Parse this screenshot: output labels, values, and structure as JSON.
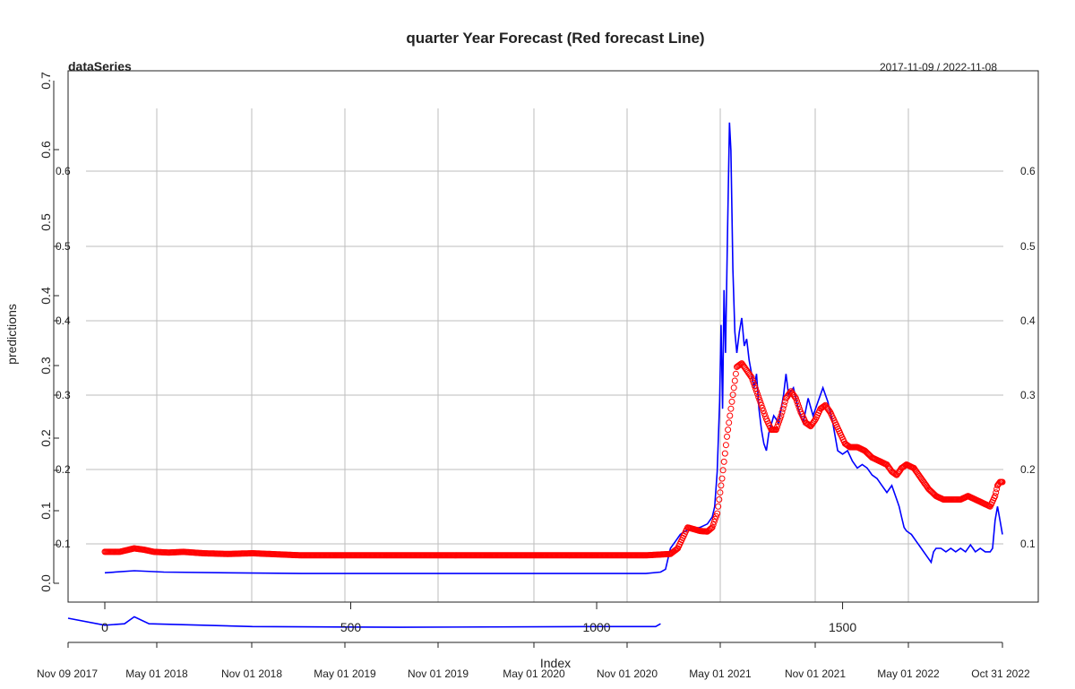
{
  "chart_data": {
    "type": "line",
    "title": "quarter Year Forecast (Red forecast Line)",
    "panel_label": "dataSeries",
    "date_range": "2017-11-09 / 2022-11-08",
    "xlabel": "Index",
    "ylabel": "predictions",
    "index_ticks": [
      0,
      500,
      1000,
      1500
    ],
    "index_range": [
      0,
      1825
    ],
    "left_y_ticks": [
      "0.0",
      "0.1",
      "0.1",
      "0.2",
      "0.2",
      "0.3",
      "0.3",
      "0.4",
      "0.5",
      "0.6",
      "0.7"
    ],
    "inner_left_y_ticks": [
      "0.1",
      "0.2",
      "0.3",
      "0.4",
      "0.5",
      "0.6"
    ],
    "right_y_ticks": [
      "0.1",
      "0.2",
      "0.3",
      "0.4",
      "0.5",
      "0.6"
    ],
    "ylim": [
      0.0,
      0.72
    ],
    "date_ticks": [
      "Nov 09 2017",
      "May 01 2018",
      "Nov 01 2018",
      "May 01 2019",
      "Nov 01 2019",
      "May 01 2020",
      "Nov 01 2020",
      "May 01 2021",
      "Nov 01 2021",
      "May 01 2022",
      "Oct 31 2022"
    ],
    "series": [
      {
        "name": "",
        "style": "line",
        "color": "#0000ff",
        "points": [
          [
            0,
            0.015
          ],
          [
            60,
            0.018
          ],
          [
            120,
            0.016
          ],
          [
            250,
            0.015
          ],
          [
            400,
            0.014
          ],
          [
            600,
            0.014
          ],
          [
            800,
            0.014
          ],
          [
            950,
            0.014
          ],
          [
            1100,
            0.014
          ],
          [
            1130,
            0.016
          ],
          [
            1140,
            0.02
          ],
          [
            1150,
            0.05
          ],
          [
            1160,
            0.06
          ],
          [
            1170,
            0.07
          ],
          [
            1180,
            0.075
          ],
          [
            1195,
            0.078
          ],
          [
            1210,
            0.08
          ],
          [
            1225,
            0.085
          ],
          [
            1235,
            0.095
          ],
          [
            1240,
            0.11
          ],
          [
            1245,
            0.16
          ],
          [
            1250,
            0.26
          ],
          [
            1253,
            0.37
          ],
          [
            1256,
            0.25
          ],
          [
            1259,
            0.42
          ],
          [
            1262,
            0.33
          ],
          [
            1266,
            0.5
          ],
          [
            1270,
            0.66
          ],
          [
            1273,
            0.62
          ],
          [
            1277,
            0.45
          ],
          [
            1281,
            0.36
          ],
          [
            1285,
            0.33
          ],
          [
            1290,
            0.36
          ],
          [
            1295,
            0.38
          ],
          [
            1300,
            0.34
          ],
          [
            1305,
            0.35
          ],
          [
            1310,
            0.32
          ],
          [
            1315,
            0.3
          ],
          [
            1320,
            0.28
          ],
          [
            1325,
            0.3
          ],
          [
            1330,
            0.25
          ],
          [
            1335,
            0.22
          ],
          [
            1340,
            0.2
          ],
          [
            1345,
            0.19
          ],
          [
            1350,
            0.215
          ],
          [
            1360,
            0.24
          ],
          [
            1370,
            0.23
          ],
          [
            1380,
            0.27
          ],
          [
            1385,
            0.3
          ],
          [
            1390,
            0.27
          ],
          [
            1400,
            0.28
          ],
          [
            1410,
            0.25
          ],
          [
            1420,
            0.23
          ],
          [
            1430,
            0.265
          ],
          [
            1440,
            0.24
          ],
          [
            1450,
            0.26
          ],
          [
            1460,
            0.28
          ],
          [
            1470,
            0.26
          ],
          [
            1480,
            0.23
          ],
          [
            1490,
            0.19
          ],
          [
            1500,
            0.185
          ],
          [
            1510,
            0.19
          ],
          [
            1520,
            0.175
          ],
          [
            1530,
            0.165
          ],
          [
            1540,
            0.17
          ],
          [
            1550,
            0.165
          ],
          [
            1560,
            0.155
          ],
          [
            1570,
            0.15
          ],
          [
            1580,
            0.14
          ],
          [
            1590,
            0.13
          ],
          [
            1600,
            0.14
          ],
          [
            1610,
            0.12
          ],
          [
            1615,
            0.11
          ],
          [
            1620,
            0.095
          ],
          [
            1625,
            0.08
          ],
          [
            1630,
            0.075
          ],
          [
            1640,
            0.07
          ],
          [
            1650,
            0.06
          ],
          [
            1660,
            0.05
          ],
          [
            1670,
            0.04
          ],
          [
            1680,
            0.03
          ],
          [
            1685,
            0.045
          ],
          [
            1690,
            0.05
          ],
          [
            1700,
            0.05
          ],
          [
            1710,
            0.045
          ],
          [
            1720,
            0.05
          ],
          [
            1730,
            0.045
          ],
          [
            1740,
            0.05
          ],
          [
            1750,
            0.045
          ],
          [
            1760,
            0.055
          ],
          [
            1765,
            0.05
          ],
          [
            1770,
            0.045
          ],
          [
            1780,
            0.05
          ],
          [
            1790,
            0.045
          ],
          [
            1800,
            0.045
          ],
          [
            1805,
            0.05
          ],
          [
            1810,
            0.09
          ],
          [
            1815,
            0.11
          ],
          [
            1820,
            0.09
          ],
          [
            1825,
            0.07
          ]
        ]
      },
      {
        "name": "",
        "style": "points",
        "color": "#ff0000",
        "points": [
          [
            0,
            0.045
          ],
          [
            30,
            0.045
          ],
          [
            60,
            0.05
          ],
          [
            80,
            0.048
          ],
          [
            100,
            0.045
          ],
          [
            130,
            0.044
          ],
          [
            160,
            0.045
          ],
          [
            200,
            0.043
          ],
          [
            250,
            0.042
          ],
          [
            300,
            0.043
          ],
          [
            400,
            0.04
          ],
          [
            500,
            0.04
          ],
          [
            600,
            0.04
          ],
          [
            700,
            0.04
          ],
          [
            800,
            0.04
          ],
          [
            900,
            0.04
          ],
          [
            1000,
            0.04
          ],
          [
            1100,
            0.04
          ],
          [
            1150,
            0.042
          ],
          [
            1165,
            0.05
          ],
          [
            1175,
            0.065
          ],
          [
            1185,
            0.08
          ],
          [
            1195,
            0.078
          ],
          [
            1210,
            0.075
          ],
          [
            1225,
            0.074
          ],
          [
            1235,
            0.08
          ],
          [
            1245,
            0.1
          ],
          [
            1255,
            0.15
          ],
          [
            1265,
            0.21
          ],
          [
            1275,
            0.26
          ],
          [
            1285,
            0.31
          ],
          [
            1295,
            0.315
          ],
          [
            1305,
            0.305
          ],
          [
            1315,
            0.295
          ],
          [
            1325,
            0.275
          ],
          [
            1335,
            0.255
          ],
          [
            1345,
            0.235
          ],
          [
            1355,
            0.22
          ],
          [
            1365,
            0.22
          ],
          [
            1375,
            0.24
          ],
          [
            1385,
            0.265
          ],
          [
            1395,
            0.275
          ],
          [
            1405,
            0.265
          ],
          [
            1415,
            0.245
          ],
          [
            1425,
            0.23
          ],
          [
            1435,
            0.225
          ],
          [
            1445,
            0.235
          ],
          [
            1455,
            0.25
          ],
          [
            1465,
            0.255
          ],
          [
            1475,
            0.245
          ],
          [
            1485,
            0.23
          ],
          [
            1495,
            0.215
          ],
          [
            1505,
            0.2
          ],
          [
            1515,
            0.195
          ],
          [
            1530,
            0.195
          ],
          [
            1545,
            0.19
          ],
          [
            1560,
            0.18
          ],
          [
            1575,
            0.175
          ],
          [
            1590,
            0.17
          ],
          [
            1600,
            0.16
          ],
          [
            1610,
            0.155
          ],
          [
            1620,
            0.165
          ],
          [
            1630,
            0.17
          ],
          [
            1645,
            0.165
          ],
          [
            1660,
            0.15
          ],
          [
            1675,
            0.135
          ],
          [
            1690,
            0.125
          ],
          [
            1705,
            0.12
          ],
          [
            1720,
            0.12
          ],
          [
            1740,
            0.12
          ],
          [
            1755,
            0.125
          ],
          [
            1770,
            0.12
          ],
          [
            1785,
            0.115
          ],
          [
            1800,
            0.11
          ],
          [
            1810,
            0.125
          ],
          [
            1815,
            0.14
          ],
          [
            1820,
            0.145
          ],
          [
            1825,
            0.145
          ]
        ]
      }
    ]
  }
}
